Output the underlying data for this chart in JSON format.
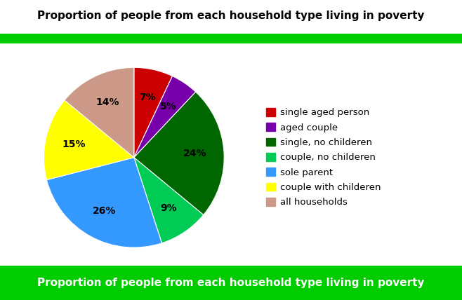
{
  "title": "Proportion of people from each household type living in poverty",
  "footer_text": "Proportion of people from each household type living in poverty",
  "labels": [
    "single aged person",
    "aged couple",
    "single, no childeren",
    "couple, no childeren",
    "sole parent",
    "couple with childeren",
    "all households"
  ],
  "sizes": [
    7,
    5,
    24,
    9,
    26,
    15,
    14
  ],
  "colors": [
    "#cc0000",
    "#7700aa",
    "#006600",
    "#00cc55",
    "#3399ff",
    "#ffff00",
    "#cc9988"
  ],
  "green_bar_color": "#00cc00",
  "footer_bg_color": "#00cc00",
  "footer_text_color": "#ffffff",
  "background_color": "#ffffff",
  "startangle": 90,
  "pct_fontsize": 10,
  "legend_fontsize": 9.5,
  "title_fontsize": 11,
  "footer_fontsize": 11
}
